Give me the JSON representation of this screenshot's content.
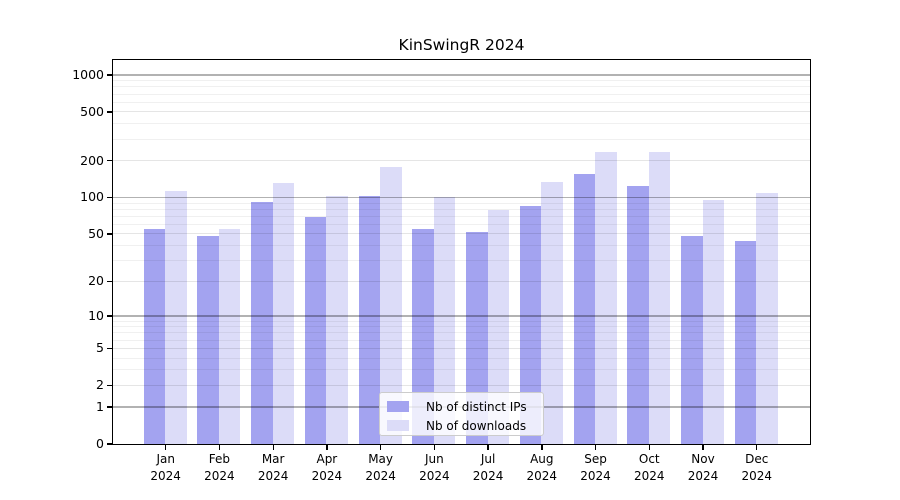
{
  "chart_data": {
    "type": "bar",
    "title": "KinSwingR 2024",
    "categories": [
      "Jan",
      "Feb",
      "Mar",
      "Apr",
      "May",
      "Jun",
      "Jul",
      "Aug",
      "Sep",
      "Oct",
      "Nov",
      "Dec"
    ],
    "year_label": "2024",
    "series": [
      {
        "name": "Nb of distinct IPs",
        "color": "#a3a3f0",
        "values": [
          55,
          48,
          91,
          69,
          101,
          54,
          51,
          84,
          154,
          124,
          48,
          43
        ]
      },
      {
        "name": "Nb of downloads",
        "color": "#dcdcf8",
        "values": [
          111,
          54,
          131,
          102,
          175,
          100,
          78,
          133,
          232,
          232,
          94,
          108
        ]
      }
    ],
    "yscale": "log1p",
    "yticks": [
      0,
      1,
      2,
      5,
      10,
      20,
      50,
      100,
      200,
      500,
      1000
    ],
    "minor_yticks": [
      3,
      4,
      6,
      7,
      8,
      9,
      30,
      40,
      60,
      70,
      80,
      90,
      300,
      400,
      600,
      700,
      800,
      900
    ],
    "ylim": [
      0,
      1324
    ],
    "grid": true,
    "legend": {
      "position": "lower center"
    }
  }
}
